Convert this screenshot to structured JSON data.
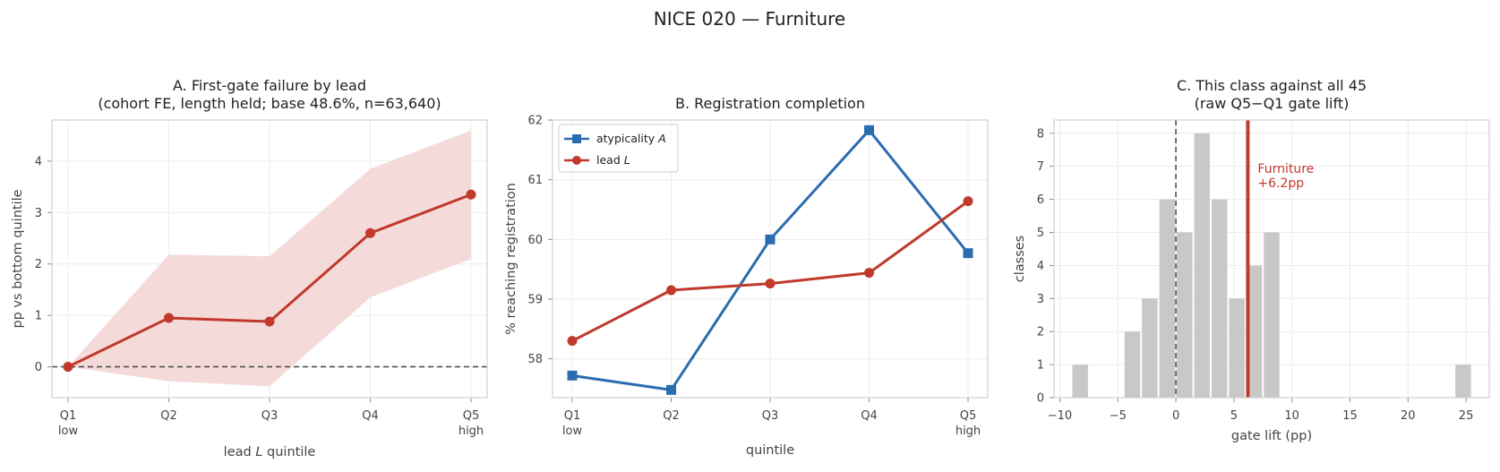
{
  "figure": {
    "title": "NICE 020 — Furniture"
  },
  "chart_data": [
    {
      "id": "A",
      "type": "line",
      "title_lines": [
        "A. First-gate failure by lead",
        "(cohort FE, length held; base 48.6%, n=63,640)"
      ],
      "xlabel_pre": "lead ",
      "xlabel_var": "L",
      "xlabel_post": " quintile",
      "ylabel": "pp vs bottom quintile",
      "categories": [
        "Q1",
        "Q2",
        "Q3",
        "Q4",
        "Q5"
      ],
      "category_sublabels": [
        "low",
        "",
        "",
        "",
        "high"
      ],
      "ylim": [
        -0.6,
        4.8
      ],
      "yticks": [
        0,
        1,
        2,
        3,
        4
      ],
      "grid": true,
      "zero_line": true,
      "series": [
        {
          "values": [
            0.0,
            0.95,
            0.88,
            2.6,
            3.35
          ],
          "ci_low": [
            0.0,
            -0.28,
            -0.38,
            1.35,
            2.1
          ],
          "ci_high": [
            0.0,
            2.18,
            2.15,
            3.85,
            4.6
          ],
          "color": "#c0392b",
          "band_color": "#f5dada"
        }
      ]
    },
    {
      "id": "B",
      "type": "line",
      "title_lines": [
        "B. Registration completion"
      ],
      "xlabel": "quintile",
      "ylabel": "% reaching registration",
      "categories": [
        "Q1",
        "Q2",
        "Q3",
        "Q4",
        "Q5"
      ],
      "category_sublabels": [
        "low",
        "",
        "",
        "",
        "high"
      ],
      "ylim": [
        57.35,
        62.0
      ],
      "yticks": [
        58,
        59,
        60,
        61,
        62
      ],
      "grid": true,
      "legend": "top-left",
      "series": [
        {
          "name_pre": "atypicality ",
          "name_var": "A",
          "values": [
            57.72,
            57.48,
            60.0,
            61.83,
            59.77
          ],
          "color": "#2b6cb0",
          "marker": "square"
        },
        {
          "name_pre": "lead ",
          "name_var": "L",
          "values": [
            58.3,
            59.15,
            59.26,
            59.44,
            60.64
          ],
          "color": "#c0392b",
          "marker": "circle"
        }
      ]
    },
    {
      "id": "C",
      "type": "bar",
      "title_lines": [
        "C. This class against all 45",
        "(raw Q5−Q1 gate lift)"
      ],
      "xlabel": "gate lift (pp)",
      "ylabel": "classes",
      "xlim": [
        -10.5,
        27.0
      ],
      "ylim": [
        0,
        8.4
      ],
      "xticks": [
        -10,
        -5,
        0,
        5,
        10,
        15,
        20,
        25
      ],
      "yticks": [
        0,
        1,
        2,
        3,
        4,
        5,
        6,
        7,
        8
      ],
      "grid": true,
      "bin_width": 1.5,
      "bins": [
        {
          "start": -9.0,
          "count": 1
        },
        {
          "start": -4.5,
          "count": 2
        },
        {
          "start": -3.0,
          "count": 3
        },
        {
          "start": -1.5,
          "count": 6
        },
        {
          "start": 0.0,
          "count": 5
        },
        {
          "start": 1.5,
          "count": 8
        },
        {
          "start": 3.0,
          "count": 6
        },
        {
          "start": 4.5,
          "count": 3
        },
        {
          "start": 6.0,
          "count": 4
        },
        {
          "start": 7.5,
          "count": 5
        },
        {
          "start": 24.0,
          "count": 1
        }
      ],
      "bar_color": "#c8c8c8",
      "zero_line": 0,
      "highlight": {
        "x": 6.2,
        "label_lines": [
          "Furniture",
          "+6.2pp"
        ],
        "color": "#c0392b"
      }
    }
  ]
}
